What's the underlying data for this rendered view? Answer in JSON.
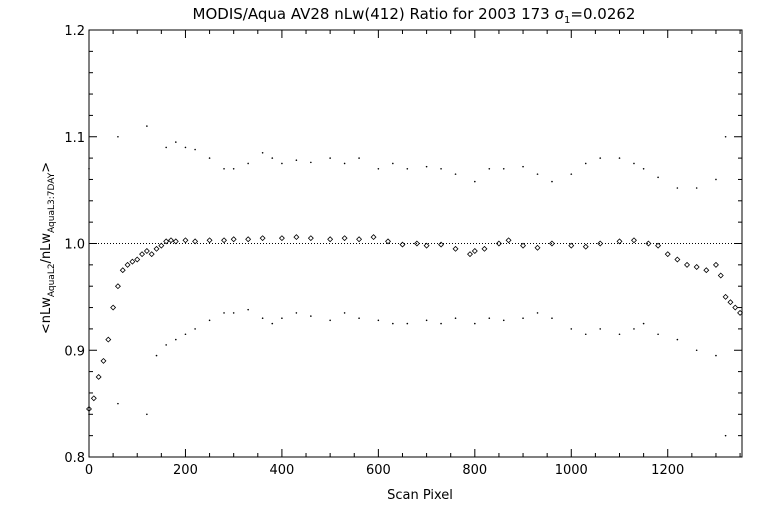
{
  "chart_data": {
    "type": "scatter",
    "title_parts": {
      "main": "MODIS/Aqua AV28 nLw(412) Ratio for 2003 173 ",
      "sigma_symbol": "σ",
      "sigma_sub": "1",
      "sigma_value": "=0.0262"
    },
    "xlabel": "Scan Pixel",
    "ylabel_parts": {
      "open": "<nLw",
      "sub1": "AquaL2",
      "mid": "/nLw",
      "sub2": "AquaL3:7DAY",
      "close": ">"
    },
    "xlim": [
      0,
      1354
    ],
    "ylim": [
      0.8,
      1.2
    ],
    "xticks": [
      0,
      200,
      400,
      600,
      800,
      1000,
      1200
    ],
    "xtick_labels": [
      "0",
      "200",
      "400",
      "600",
      "800",
      "1000",
      "1200"
    ],
    "yticks": [
      0.8,
      0.9,
      1.0,
      1.1,
      1.2
    ],
    "ytick_labels": [
      "0.8",
      "0.9",
      "1.0",
      "1.1",
      "1.2"
    ],
    "reference_line": {
      "y": 1.0,
      "style": "dotted"
    },
    "grid": false,
    "series": [
      {
        "marker": "diamond",
        "x": [
          0,
          10,
          20,
          30,
          40,
          50,
          60,
          70,
          80,
          90,
          100,
          110,
          120,
          130,
          140,
          150,
          160,
          170,
          180,
          200,
          220,
          250,
          280,
          300,
          330,
          360,
          400,
          430,
          460,
          500,
          530,
          560,
          590,
          620,
          650,
          680,
          700,
          730,
          760,
          790,
          800,
          820,
          850,
          870,
          900,
          930,
          960,
          1000,
          1030,
          1060,
          1100,
          1130,
          1160,
          1180,
          1200,
          1220,
          1240,
          1260,
          1280,
          1300,
          1310,
          1320,
          1330,
          1340,
          1350
        ],
        "y": [
          0.845,
          0.855,
          0.875,
          0.89,
          0.91,
          0.94,
          0.96,
          0.975,
          0.98,
          0.983,
          0.985,
          0.99,
          0.993,
          0.99,
          0.995,
          0.998,
          1.002,
          1.003,
          1.002,
          1.003,
          1.002,
          1.003,
          1.003,
          1.004,
          1.004,
          1.005,
          1.005,
          1.006,
          1.005,
          1.004,
          1.005,
          1.004,
          1.006,
          1.002,
          0.999,
          1.0,
          0.998,
          0.999,
          0.995,
          0.99,
          0.993,
          0.995,
          1.0,
          1.003,
          0.998,
          0.996,
          1.0,
          0.998,
          0.997,
          1.0,
          1.002,
          1.003,
          1.0,
          0.998,
          0.99,
          0.985,
          0.98,
          0.978,
          0.975,
          0.98,
          0.97,
          0.95,
          0.945,
          0.94,
          0.935
        ]
      },
      {
        "marker": "dot",
        "x": [
          0,
          60,
          120,
          160,
          180,
          200,
          220,
          250,
          280,
          300,
          330,
          360,
          380,
          400,
          430,
          460,
          500,
          530,
          560,
          600,
          630,
          660,
          700,
          730,
          760,
          800,
          830,
          860,
          900,
          930,
          960,
          1000,
          1030,
          1060,
          1100,
          1130,
          1150,
          1180,
          1220,
          1260,
          1300,
          1320
        ],
        "y": [
          1.07,
          1.1,
          1.11,
          1.09,
          1.095,
          1.09,
          1.088,
          1.08,
          1.07,
          1.07,
          1.075,
          1.085,
          1.08,
          1.075,
          1.078,
          1.076,
          1.08,
          1.075,
          1.08,
          1.07,
          1.075,
          1.07,
          1.072,
          1.07,
          1.065,
          1.058,
          1.07,
          1.07,
          1.072,
          1.065,
          1.058,
          1.065,
          1.075,
          1.08,
          1.08,
          1.075,
          1.07,
          1.062,
          1.052,
          1.052,
          1.06,
          1.1
        ]
      },
      {
        "marker": "dot",
        "x": [
          0,
          60,
          120,
          140,
          160,
          180,
          200,
          220,
          250,
          280,
          300,
          330,
          360,
          380,
          400,
          430,
          460,
          500,
          530,
          560,
          600,
          630,
          660,
          700,
          730,
          760,
          800,
          830,
          860,
          900,
          930,
          960,
          1000,
          1030,
          1060,
          1100,
          1130,
          1150,
          1180,
          1220,
          1260,
          1300,
          1320
        ],
        "y": [
          0.84,
          0.85,
          0.84,
          0.895,
          0.905,
          0.91,
          0.915,
          0.92,
          0.928,
          0.935,
          0.935,
          0.938,
          0.93,
          0.925,
          0.93,
          0.935,
          0.932,
          0.928,
          0.935,
          0.93,
          0.928,
          0.925,
          0.925,
          0.928,
          0.925,
          0.93,
          0.925,
          0.93,
          0.928,
          0.93,
          0.935,
          0.93,
          0.92,
          0.915,
          0.92,
          0.915,
          0.92,
          0.925,
          0.915,
          0.91,
          0.9,
          0.895,
          0.82
        ]
      }
    ]
  }
}
